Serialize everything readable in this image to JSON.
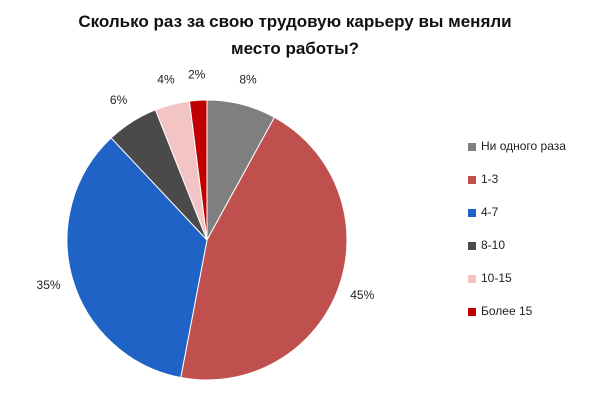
{
  "chart_data": {
    "type": "pie",
    "title": "Сколько раз за свою трудовую карьеру вы меняли место работы?",
    "categories": [
      "Ни одного раза",
      "1-3",
      "4-7",
      "8-10",
      "10-15",
      "Более 15"
    ],
    "values": [
      8,
      45,
      35,
      6,
      4,
      2
    ],
    "value_labels": [
      "8%",
      "45%",
      "35%",
      "6%",
      "4%",
      "2%"
    ],
    "colors": [
      "#7f7f7f",
      "#c0504d",
      "#1f63c6",
      "#4a4a4a",
      "#f2c4c4",
      "#c00000"
    ],
    "legend": "right"
  }
}
